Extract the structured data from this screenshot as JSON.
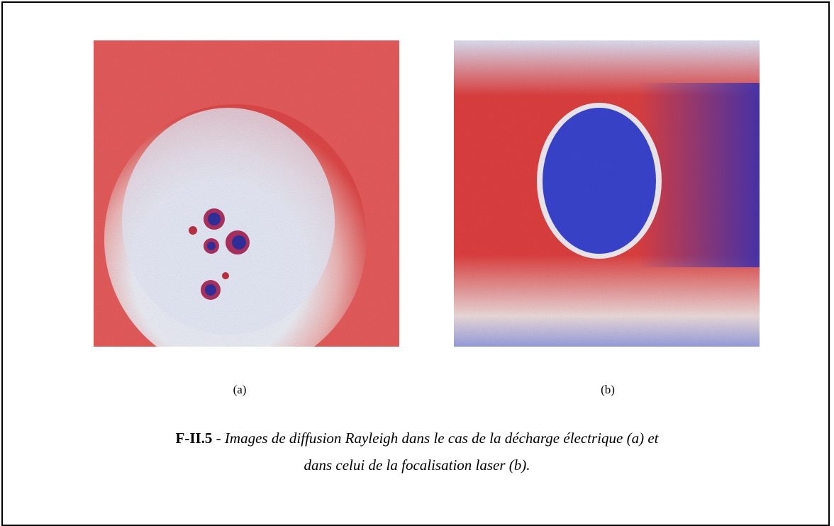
{
  "figure": {
    "panels": [
      {
        "label": "(a)"
      },
      {
        "label": "(b)"
      }
    ],
    "caption": {
      "number": "F-II.5",
      "separator": " - ",
      "line1": "Images de diffusion Rayleigh dans le cas de la décharge électrique (a) et",
      "line2": "dans celui de la focalisation laser (b)."
    }
  }
}
